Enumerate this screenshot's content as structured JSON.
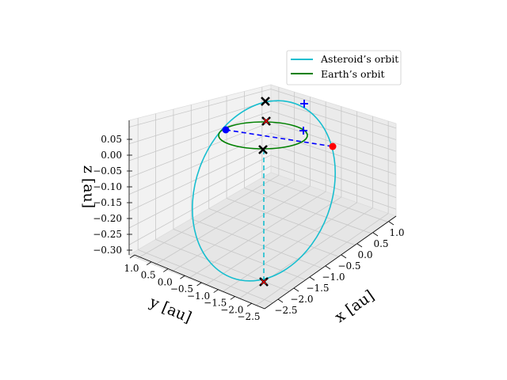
{
  "chart_data": {
    "type": "line",
    "projection": "3d",
    "grid": true,
    "legend_placement": "top-right",
    "xlabel": "x [au]",
    "ylabel": "y [au]",
    "zlabel": "z [au]",
    "x_ticks": [
      "−2.5",
      "−2.0",
      "−1.5",
      "−1.0",
      "−0.5",
      "0.0",
      "0.5",
      "1.0"
    ],
    "y_ticks": [
      "1.0",
      "0.5",
      "0.0",
      "−0.5",
      "−1.0",
      "−1.5",
      "−2.0",
      "−2.5"
    ],
    "z_ticks": [
      "0.05",
      "0.00",
      "−0.05",
      "−0.10",
      "−0.15",
      "−0.20",
      "−0.25",
      "−0.30"
    ],
    "xlim": [
      -2.75,
      1.25
    ],
    "ylim": [
      -2.75,
      1.25
    ],
    "zlim": [
      -0.33,
      0.1
    ],
    "series": [
      {
        "name": "Asteroid’s orbit",
        "color": "#17becf",
        "style": "solid",
        "kind": "ellipse"
      },
      {
        "name": "Earth’s orbit",
        "color": "#008000",
        "style": "solid",
        "kind": "ellipse"
      }
    ],
    "guides": [
      {
        "color": "#0000ff",
        "style": "dashed",
        "description": "line of nodes"
      },
      {
        "color": "#17becf",
        "style": "dashed",
        "description": "vertical guide"
      }
    ],
    "markers": [
      {
        "marker": "circle",
        "color": "#0000ff"
      },
      {
        "marker": "circle",
        "color": "#ff0000"
      },
      {
        "marker": "plus",
        "color": "#0000ff"
      },
      {
        "marker": "plus",
        "color": "#0000ff"
      },
      {
        "marker": "x",
        "color": "#000000"
      },
      {
        "marker": "x",
        "color": "#000000"
      },
      {
        "marker": "x",
        "color": "#000000",
        "inner_color": "#ff0000"
      },
      {
        "marker": "x",
        "color": "#000000",
        "inner_color": "#ff0000"
      }
    ]
  }
}
